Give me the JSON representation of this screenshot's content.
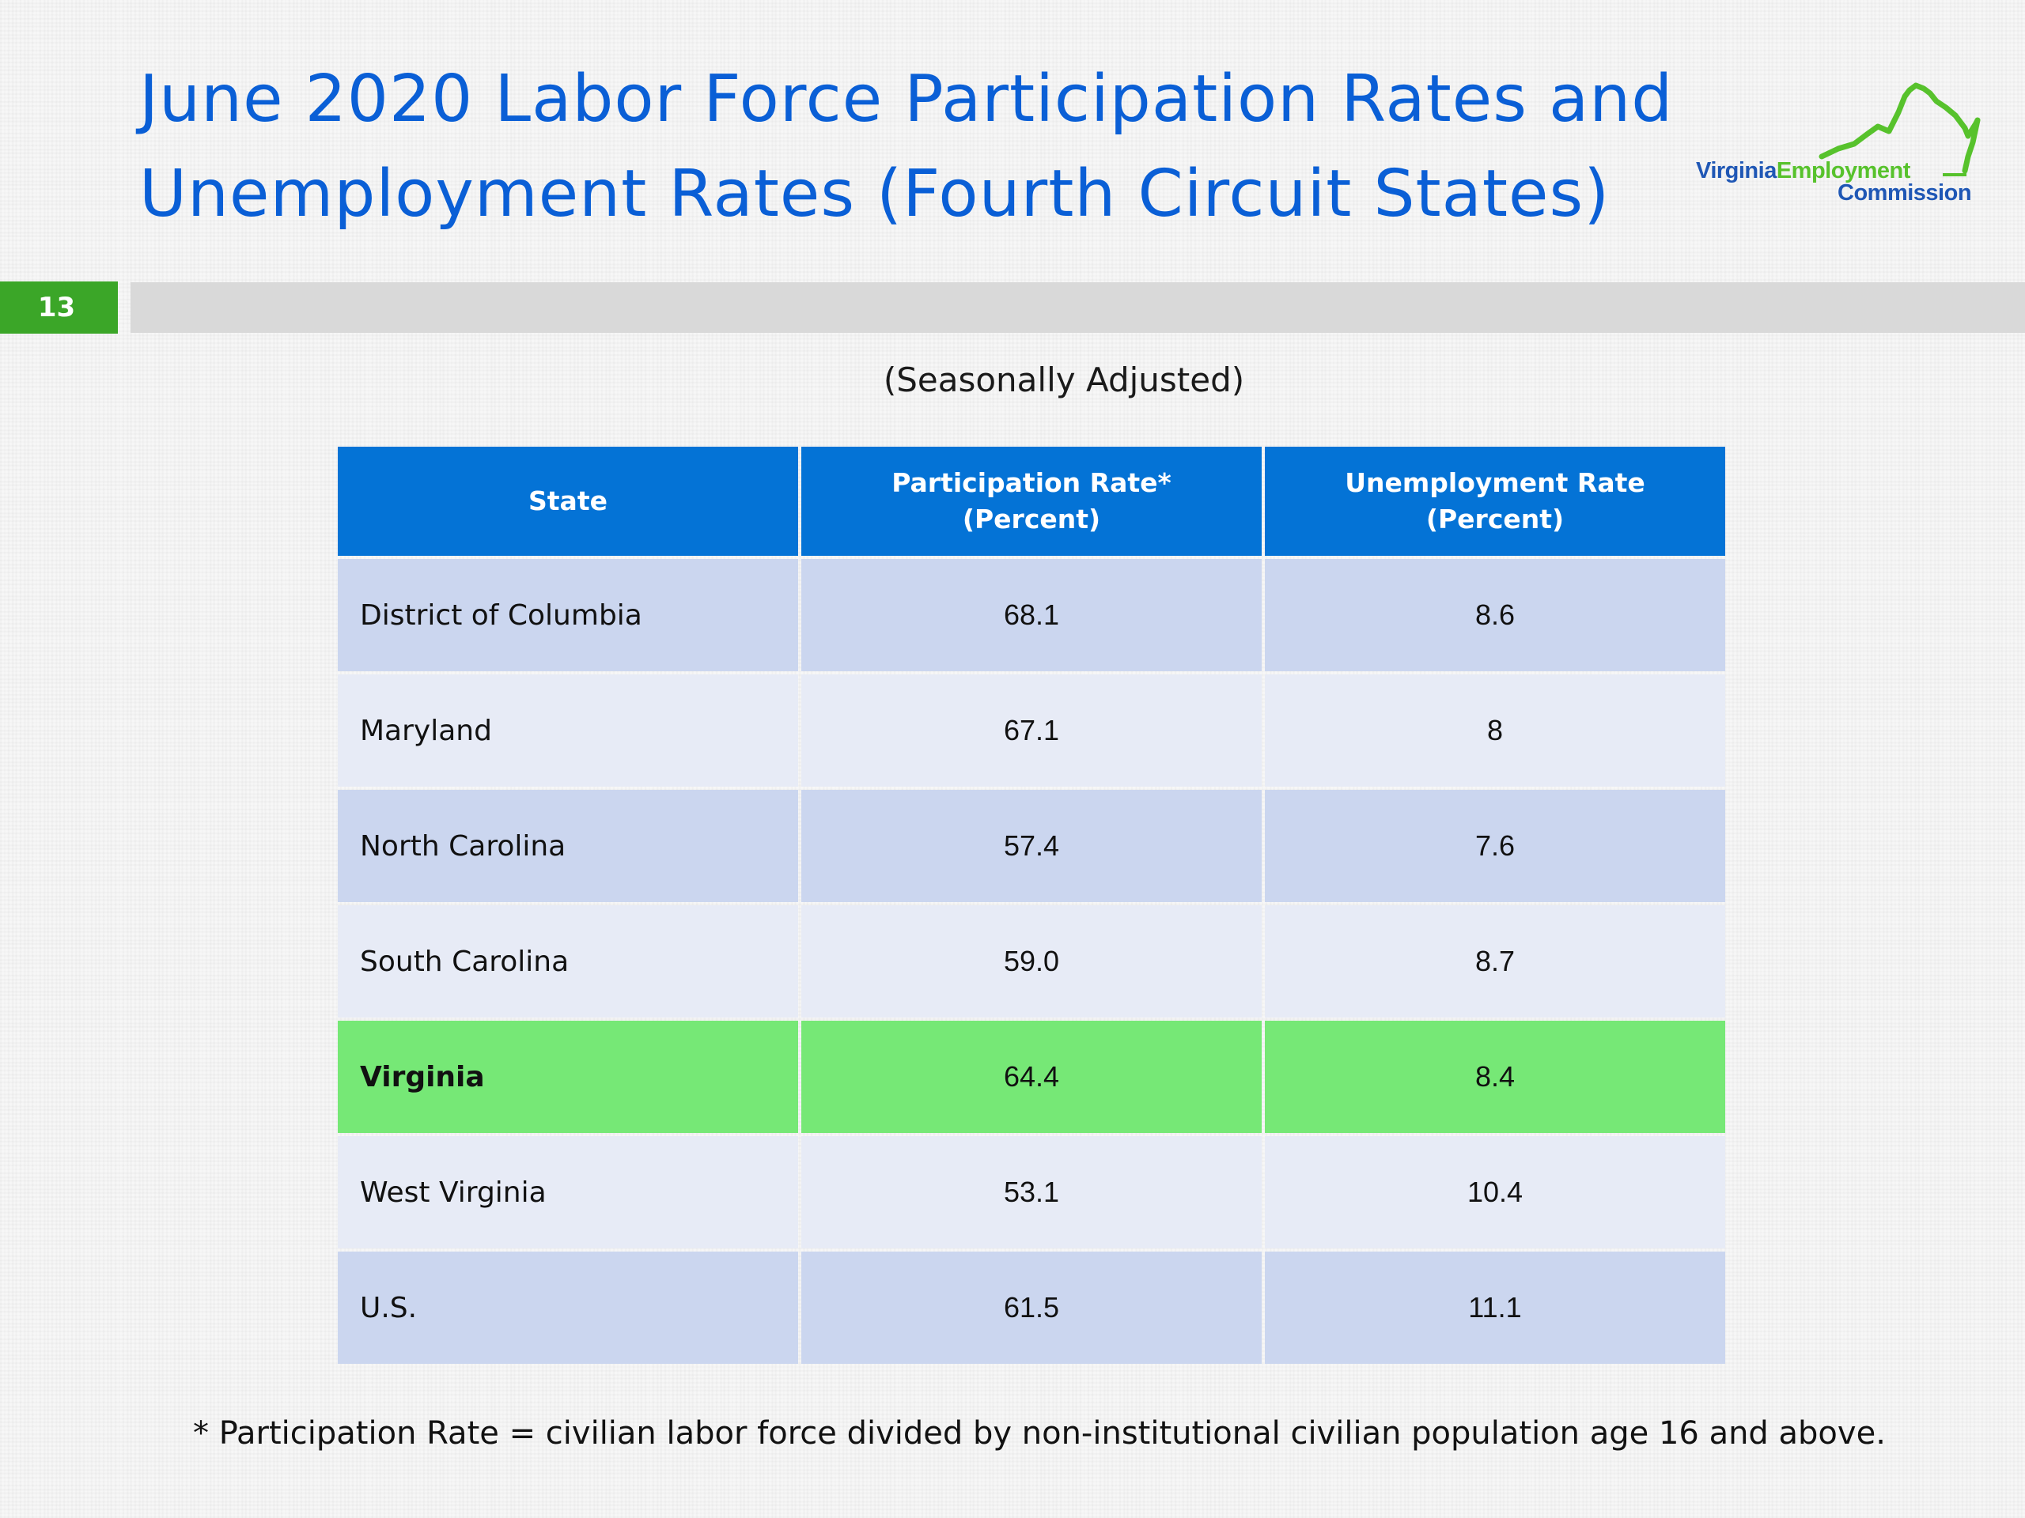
{
  "slide": {
    "title_line1": "June 2020 Labor Force Participation Rates and",
    "title_line2": "Unemployment Rates (Fourth Circuit States)",
    "number": "13",
    "subtitle": "(Seasonally Adjusted)",
    "footnote": "* Participation Rate = civilian labor force divided by non-institutional civilian population age 16 and above."
  },
  "logo": {
    "word1": "Virginia",
    "word2": "Employment",
    "word3": "Commission",
    "primary_color": "#1f57b5",
    "accent_color": "#57c22c"
  },
  "table": {
    "headers": {
      "state": "State",
      "participation_line1": "Participation Rate*",
      "participation_line2": "(Percent)",
      "unemployment_line1": "Unemployment Rate",
      "unemployment_line2": "(Percent)"
    },
    "rows": [
      {
        "state": "District of Columbia",
        "participation": "68.1",
        "unemployment": "8.6"
      },
      {
        "state": "Maryland",
        "participation": "67.1",
        "unemployment": "8"
      },
      {
        "state": "North Carolina",
        "participation": "57.4",
        "unemployment": "7.6"
      },
      {
        "state": "South Carolina",
        "participation": "59.0",
        "unemployment": "8.7"
      },
      {
        "state": "Virginia",
        "participation": "64.4",
        "unemployment": "8.4"
      },
      {
        "state": "West Virginia",
        "participation": "53.1",
        "unemployment": "10.4"
      },
      {
        "state": "U.S.",
        "participation": "61.5",
        "unemployment": "11.1"
      }
    ],
    "highlighted_state": "Virginia",
    "header_color": "#0473d6",
    "highlight_color": "#76e876"
  },
  "colors": {
    "title": "#0a5fd6",
    "slide_number_bg": "#3ba628",
    "header_bar": "#d9d9d9"
  }
}
